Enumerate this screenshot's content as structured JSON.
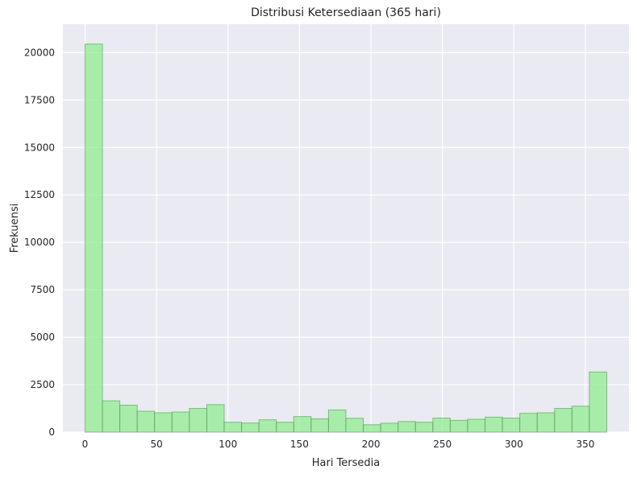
{
  "chart_data": {
    "type": "bar",
    "title": "Distribusi Ketersediaan (365 hari)",
    "xlabel": "Hari Tersedia",
    "ylabel": "Frekuensi",
    "bin_edges": [
      0,
      12.17,
      24.33,
      36.5,
      48.67,
      60.83,
      73,
      85.17,
      97.33,
      109.5,
      121.67,
      133.83,
      146,
      158.17,
      170.33,
      182.5,
      194.67,
      206.83,
      219,
      231.17,
      243.33,
      255.5,
      267.67,
      279.83,
      292,
      304.17,
      316.33,
      328.5,
      340.67,
      352.83,
      365
    ],
    "values": [
      20450,
      1650,
      1420,
      1100,
      1020,
      1060,
      1250,
      1450,
      520,
      480,
      650,
      520,
      820,
      700,
      1170,
      730,
      390,
      470,
      560,
      520,
      740,
      620,
      680,
      790,
      740,
      990,
      1020,
      1250,
      1370,
      3170
    ],
    "xlim": [
      -15.5,
      380.5
    ],
    "ylim": [
      0,
      21500
    ],
    "xticks": [
      "0",
      "50",
      "100",
      "150",
      "200",
      "250",
      "300",
      "350"
    ],
    "yticks": [
      "0",
      "2500",
      "5000",
      "7500",
      "10000",
      "12500",
      "15000",
      "17500",
      "20000"
    ],
    "grid": true,
    "colors": {
      "background": "#eaeaf2",
      "bar_fill": "#90ee90",
      "bar_edge": "#5a8f5a",
      "grid": "#ffffff"
    }
  }
}
